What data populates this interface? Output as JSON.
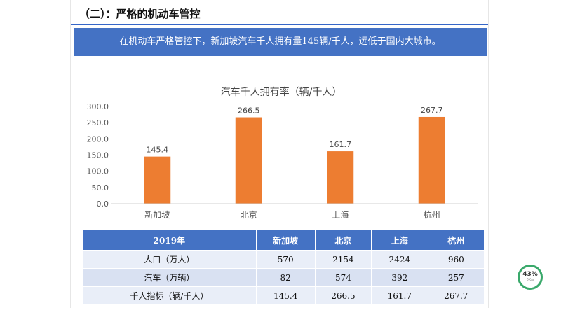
{
  "slide": {
    "section_title": "（二）：严格的机动车管控",
    "banner_text": "在机动车严格管控下，新加坡汽车千人拥有量145辆/千人，远低于国内大城市。"
  },
  "chart_data": {
    "type": "bar",
    "title": "汽车千人拥有率（辆/千人）",
    "categories": [
      "新加坡",
      "北京",
      "上海",
      "杭州"
    ],
    "values": [
      145.4,
      266.5,
      161.7,
      267.7
    ],
    "value_labels": [
      "145.4",
      "266.5",
      "161.7",
      "267.7"
    ],
    "ylim": [
      0,
      300
    ],
    "yticks": [
      "0.0",
      "50.0",
      "100.0",
      "150.0",
      "200.0",
      "250.0",
      "300.0"
    ],
    "grid": false,
    "bar_color": "#ed7d31"
  },
  "table": {
    "headers": [
      "2019年",
      "新加坡",
      "北京",
      "上海",
      "杭州"
    ],
    "rows": [
      [
        "人口（万人）",
        "570",
        "2154",
        "2424",
        "960"
      ],
      [
        "汽车（万辆）",
        "82",
        "574",
        "392",
        "257"
      ],
      [
        "千人指标（辆/千人）",
        "145.4",
        "266.5",
        "161.7",
        "267.7"
      ]
    ]
  },
  "badge": {
    "percent": "43%",
    "sub": "0K/s"
  },
  "colors": {
    "header_blue": "#4472c4",
    "accent_orange": "#ed7d31",
    "badge_green": "#3aa96b"
  }
}
